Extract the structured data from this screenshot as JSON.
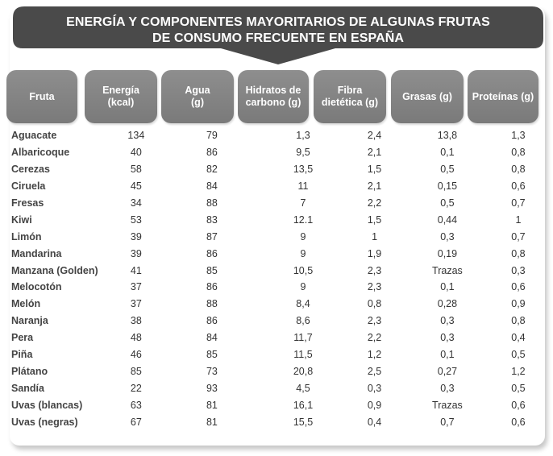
{
  "title": {
    "line1": "ENERGÍA Y COMPONENTES MAYORITARIOS DE ALGUNAS FRUTAS",
    "line2": "DE CONSUMO FRECUENTE EN ESPAÑA"
  },
  "colors": {
    "banner": "#4a4a4a",
    "header_bg": "#858585",
    "text": "#333333"
  },
  "headers": [
    "Fruta",
    "Energía\n(kcal)",
    "Agua\n(g)",
    "Hidratos de\ncarbono (g)",
    "Fibra\ndietética (g)",
    "Grasas (g)",
    "Proteínas (g)"
  ],
  "rows": [
    {
      "fruta": "Aguacate",
      "energia": "134",
      "agua": "79",
      "hidratos": "1,3",
      "fibra": "2,4",
      "grasas": "13,8",
      "proteinas": "1,3"
    },
    {
      "fruta": "Albaricoque",
      "energia": "40",
      "agua": "86",
      "hidratos": "9,5",
      "fibra": "2,1",
      "grasas": "0,1",
      "proteinas": "0,8"
    },
    {
      "fruta": "Cerezas",
      "energia": "58",
      "agua": "82",
      "hidratos": "13,5",
      "fibra": "1,5",
      "grasas": "0,5",
      "proteinas": "0,8"
    },
    {
      "fruta": "Ciruela",
      "energia": "45",
      "agua": "84",
      "hidratos": "11",
      "fibra": "2,1",
      "grasas": "0,15",
      "proteinas": "0,6"
    },
    {
      "fruta": "Fresas",
      "energia": "34",
      "agua": "88",
      "hidratos": "7",
      "fibra": "2,2",
      "grasas": "0,5",
      "proteinas": "0,7"
    },
    {
      "fruta": "Kiwi",
      "energia": "53",
      "agua": "83",
      "hidratos": "12.1",
      "fibra": "1,5",
      "grasas": "0,44",
      "proteinas": "1"
    },
    {
      "fruta": "Limón",
      "energia": "39",
      "agua": "87",
      "hidratos": "9",
      "fibra": "1",
      "grasas": "0,3",
      "proteinas": "0,7"
    },
    {
      "fruta": "Mandarina",
      "energia": "39",
      "agua": "86",
      "hidratos": "9",
      "fibra": "1,9",
      "grasas": "0,19",
      "proteinas": "0,8"
    },
    {
      "fruta": "Manzana (Golden)",
      "energia": "41",
      "agua": "85",
      "hidratos": "10,5",
      "fibra": "2,3",
      "grasas": "Trazas",
      "proteinas": "0,3"
    },
    {
      "fruta": "Melocotón",
      "energia": "37",
      "agua": "86",
      "hidratos": "9",
      "fibra": "2,3",
      "grasas": "0,1",
      "proteinas": "0,6"
    },
    {
      "fruta": "Melón",
      "energia": "37",
      "agua": "88",
      "hidratos": "8,4",
      "fibra": "0,8",
      "grasas": "0,28",
      "proteinas": "0,9"
    },
    {
      "fruta": "Naranja",
      "energia": "38",
      "agua": "86",
      "hidratos": "8,6",
      "fibra": "2,3",
      "grasas": "0,3",
      "proteinas": "0,8"
    },
    {
      "fruta": "Pera",
      "energia": "48",
      "agua": "84",
      "hidratos": "11,7",
      "fibra": "2,2",
      "grasas": "0,3",
      "proteinas": "0,4"
    },
    {
      "fruta": "Piña",
      "energia": "46",
      "agua": "85",
      "hidratos": "11,5",
      "fibra": "1,2",
      "grasas": "0,1",
      "proteinas": "0,5"
    },
    {
      "fruta": "Plátano",
      "energia": "85",
      "agua": "73",
      "hidratos": "20,8",
      "fibra": "2,5",
      "grasas": "0,27",
      "proteinas": "1,2"
    },
    {
      "fruta": "Sandía",
      "energia": "22",
      "agua": "93",
      "hidratos": "4,5",
      "fibra": "0,3",
      "grasas": "0,3",
      "proteinas": "0,5"
    },
    {
      "fruta": "Uvas (blancas)",
      "energia": "63",
      "agua": "81",
      "hidratos": "16,1",
      "fibra": "0,9",
      "grasas": "Trazas",
      "proteinas": "0,6"
    },
    {
      "fruta": "Uvas (negras)",
      "energia": "67",
      "agua": "81",
      "hidratos": "15,5",
      "fibra": "0,4",
      "grasas": "0,7",
      "proteinas": "0,6"
    }
  ]
}
